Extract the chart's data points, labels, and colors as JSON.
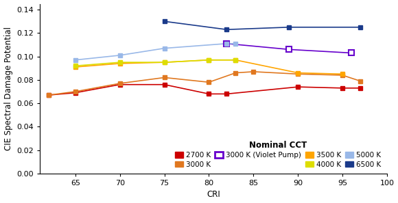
{
  "title": "",
  "xlabel": "CRI",
  "ylabel": "CIE Spectral Damage Potential",
  "xlim": [
    61,
    100
  ],
  "ylim": [
    0.0,
    0.145
  ],
  "xticks": [
    65,
    70,
    75,
    80,
    85,
    90,
    95,
    100
  ],
  "yticks": [
    0.0,
    0.02,
    0.04,
    0.06,
    0.08,
    0.1,
    0.12,
    0.14
  ],
  "series": [
    {
      "label": "2700 K",
      "color": "#cc0000",
      "filled": true,
      "x": [
        62,
        65,
        70,
        75,
        80,
        82,
        90,
        95,
        97
      ],
      "y": [
        0.067,
        0.069,
        0.076,
        0.076,
        0.068,
        0.068,
        0.074,
        0.073,
        0.073
      ]
    },
    {
      "label": "3000 K",
      "color": "#e07820",
      "filled": true,
      "x": [
        62,
        65,
        70,
        75,
        80,
        83,
        85,
        90,
        95,
        97
      ],
      "y": [
        0.067,
        0.07,
        0.077,
        0.082,
        0.078,
        0.086,
        0.087,
        0.085,
        0.084,
        0.079
      ]
    },
    {
      "label": "3000 K (Violet Pump)",
      "color": "#6600cc",
      "filled": false,
      "x": [
        82,
        89,
        96
      ],
      "y": [
        0.111,
        0.106,
        0.103
      ]
    },
    {
      "label": "3500 K",
      "color": "#ffa500",
      "filled": true,
      "x": [
        65,
        70,
        75,
        80,
        83,
        90,
        95
      ],
      "y": [
        0.091,
        0.094,
        0.095,
        0.097,
        0.097,
        0.086,
        0.085
      ]
    },
    {
      "label": "4000 K",
      "color": "#dddd00",
      "filled": true,
      "x": [
        65,
        70,
        75,
        80,
        83
      ],
      "y": [
        0.092,
        0.095,
        0.095,
        0.097,
        0.097
      ]
    },
    {
      "label": "5000 K",
      "color": "#99b8e8",
      "filled": true,
      "x": [
        65,
        70,
        75,
        82,
        83
      ],
      "y": [
        0.097,
        0.101,
        0.107,
        0.111,
        0.111
      ]
    },
    {
      "label": "6500 K",
      "color": "#1a3a8a",
      "filled": true,
      "x": [
        75,
        82,
        89,
        97
      ],
      "y": [
        0.13,
        0.123,
        0.125,
        0.125
      ]
    }
  ],
  "legend_title": "Nominal CCT",
  "legend_order": [
    0,
    1,
    2,
    3,
    4,
    5,
    6
  ],
  "legend_ncol": 4,
  "legend_fontsize": 7.5,
  "legend_title_fontsize": 8.5,
  "axis_fontsize": 8.5,
  "tick_fontsize": 8
}
